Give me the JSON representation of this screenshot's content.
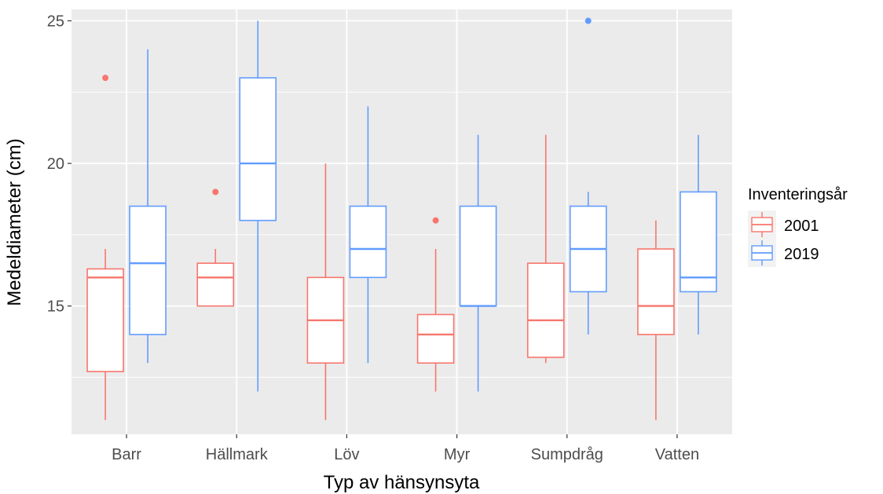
{
  "chart_data": {
    "type": "boxplot",
    "xlabel": "Typ av hänsynsyta",
    "ylabel": "Medeldiameter (cm)",
    "ylim": [
      10.5,
      25.4
    ],
    "yticks": [
      15,
      20,
      25
    ],
    "minor_yticks": [
      12.5,
      17.5,
      22.5
    ],
    "grid": true,
    "background": "#ebebeb",
    "categories": [
      "Barr",
      "Hällmark",
      "Löv",
      "Myr",
      "Sumpdråg",
      "Vatten"
    ],
    "legend": {
      "title": "Inventeringsår",
      "position": "right"
    },
    "series": [
      {
        "name": "2001",
        "color": "#f8766d",
        "boxes": [
          {
            "min": 11,
            "q1": 12.7,
            "median": 16,
            "q3": 16.3,
            "max": 17,
            "outliers": [
              23
            ]
          },
          {
            "min": 15,
            "q1": 15,
            "median": 16,
            "q3": 16.5,
            "max": 17,
            "outliers": [
              19
            ]
          },
          {
            "min": 11,
            "q1": 13,
            "median": 14.5,
            "q3": 16,
            "max": 20,
            "outliers": []
          },
          {
            "min": 12,
            "q1": 13,
            "median": 14,
            "q3": 14.7,
            "max": 17,
            "outliers": [
              18
            ]
          },
          {
            "min": 13,
            "q1": 13.2,
            "median": 14.5,
            "q3": 16.5,
            "max": 21,
            "outliers": []
          },
          {
            "min": 11,
            "q1": 14,
            "median": 15,
            "q3": 17,
            "max": 18,
            "outliers": []
          }
        ]
      },
      {
        "name": "2019",
        "color": "#619cff",
        "boxes": [
          {
            "min": 13,
            "q1": 14,
            "median": 16.5,
            "q3": 18.5,
            "max": 24,
            "outliers": []
          },
          {
            "min": 12,
            "q1": 18,
            "median": 20,
            "q3": 23,
            "max": 25,
            "outliers": []
          },
          {
            "min": 13,
            "q1": 16,
            "median": 17,
            "q3": 18.5,
            "max": 22,
            "outliers": []
          },
          {
            "min": 12,
            "q1": 15,
            "median": 15,
            "q3": 18.5,
            "max": 21,
            "outliers": []
          },
          {
            "min": 14,
            "q1": 15.5,
            "median": 17,
            "q3": 18.5,
            "max": 19,
            "outliers": [
              25
            ]
          },
          {
            "min": 14,
            "q1": 15.5,
            "median": 16,
            "q3": 19,
            "max": 21,
            "outliers": []
          }
        ]
      }
    ]
  }
}
